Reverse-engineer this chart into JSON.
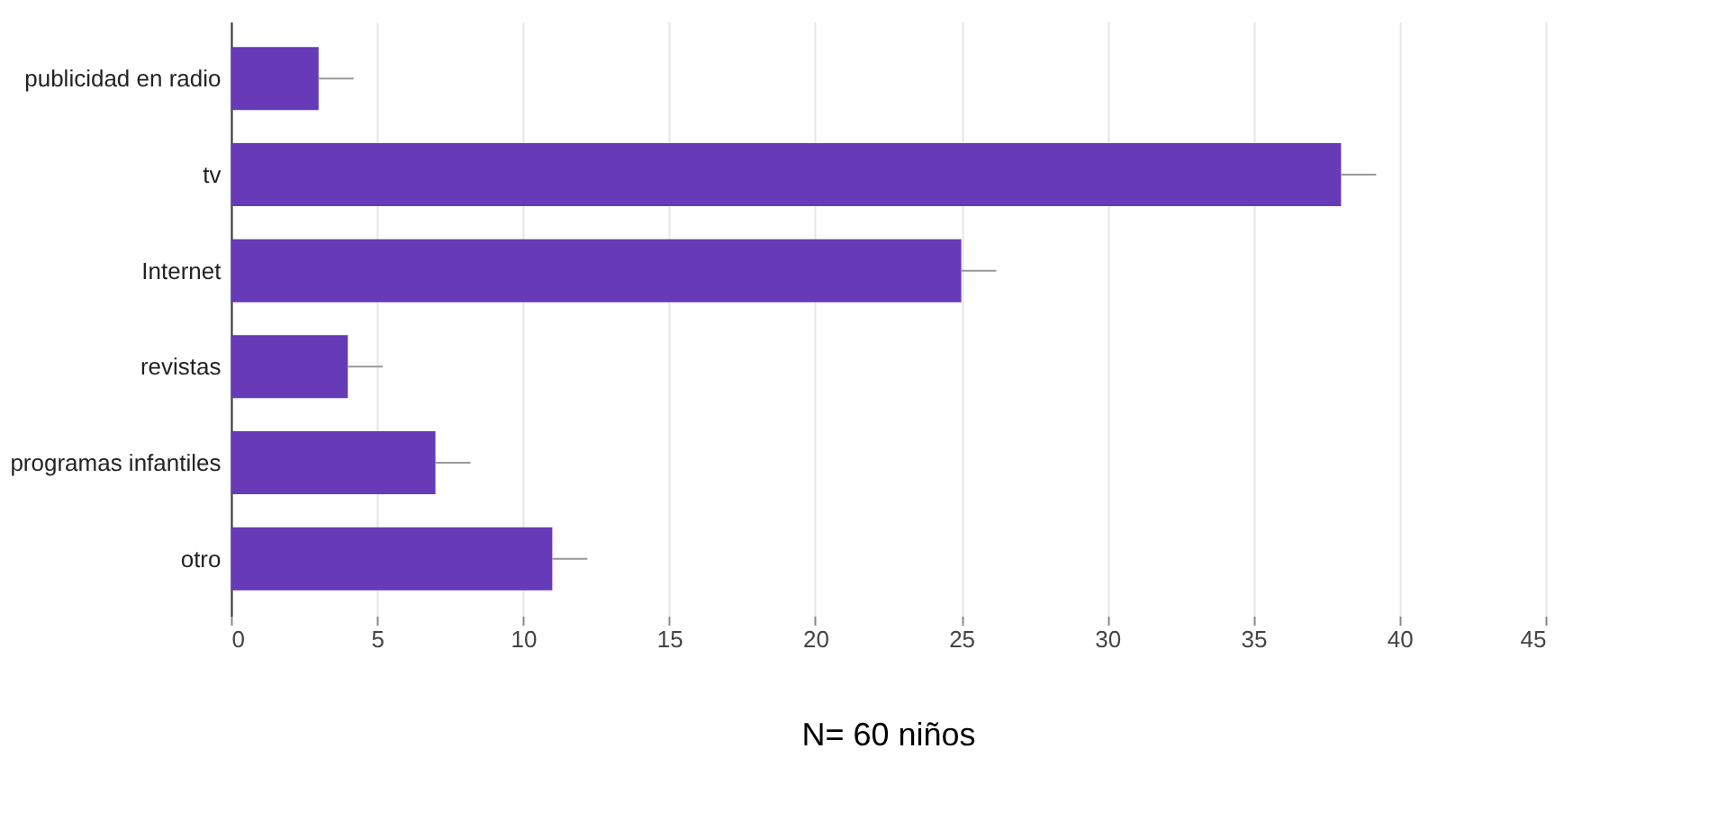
{
  "chart_data": {
    "type": "bar",
    "orientation": "horizontal",
    "categories": [
      "publicidad en radio",
      "tv",
      "Internet",
      "revistas",
      "programas infantiles",
      "otro"
    ],
    "values": [
      3,
      38,
      25,
      4,
      7,
      11
    ],
    "color": "#673ab7",
    "errors": [
      [
        3,
        4.2
      ],
      [
        38,
        39.2
      ],
      [
        25,
        26.2
      ],
      [
        4,
        5.2
      ],
      [
        7,
        8.2
      ],
      [
        11,
        12.2
      ]
    ],
    "xlim": [
      0,
      45
    ],
    "xticks": [
      0,
      5,
      10,
      15,
      20,
      25,
      30,
      35,
      40,
      45
    ],
    "grid": "x",
    "annotations": [
      "N= 60 niños"
    ]
  }
}
